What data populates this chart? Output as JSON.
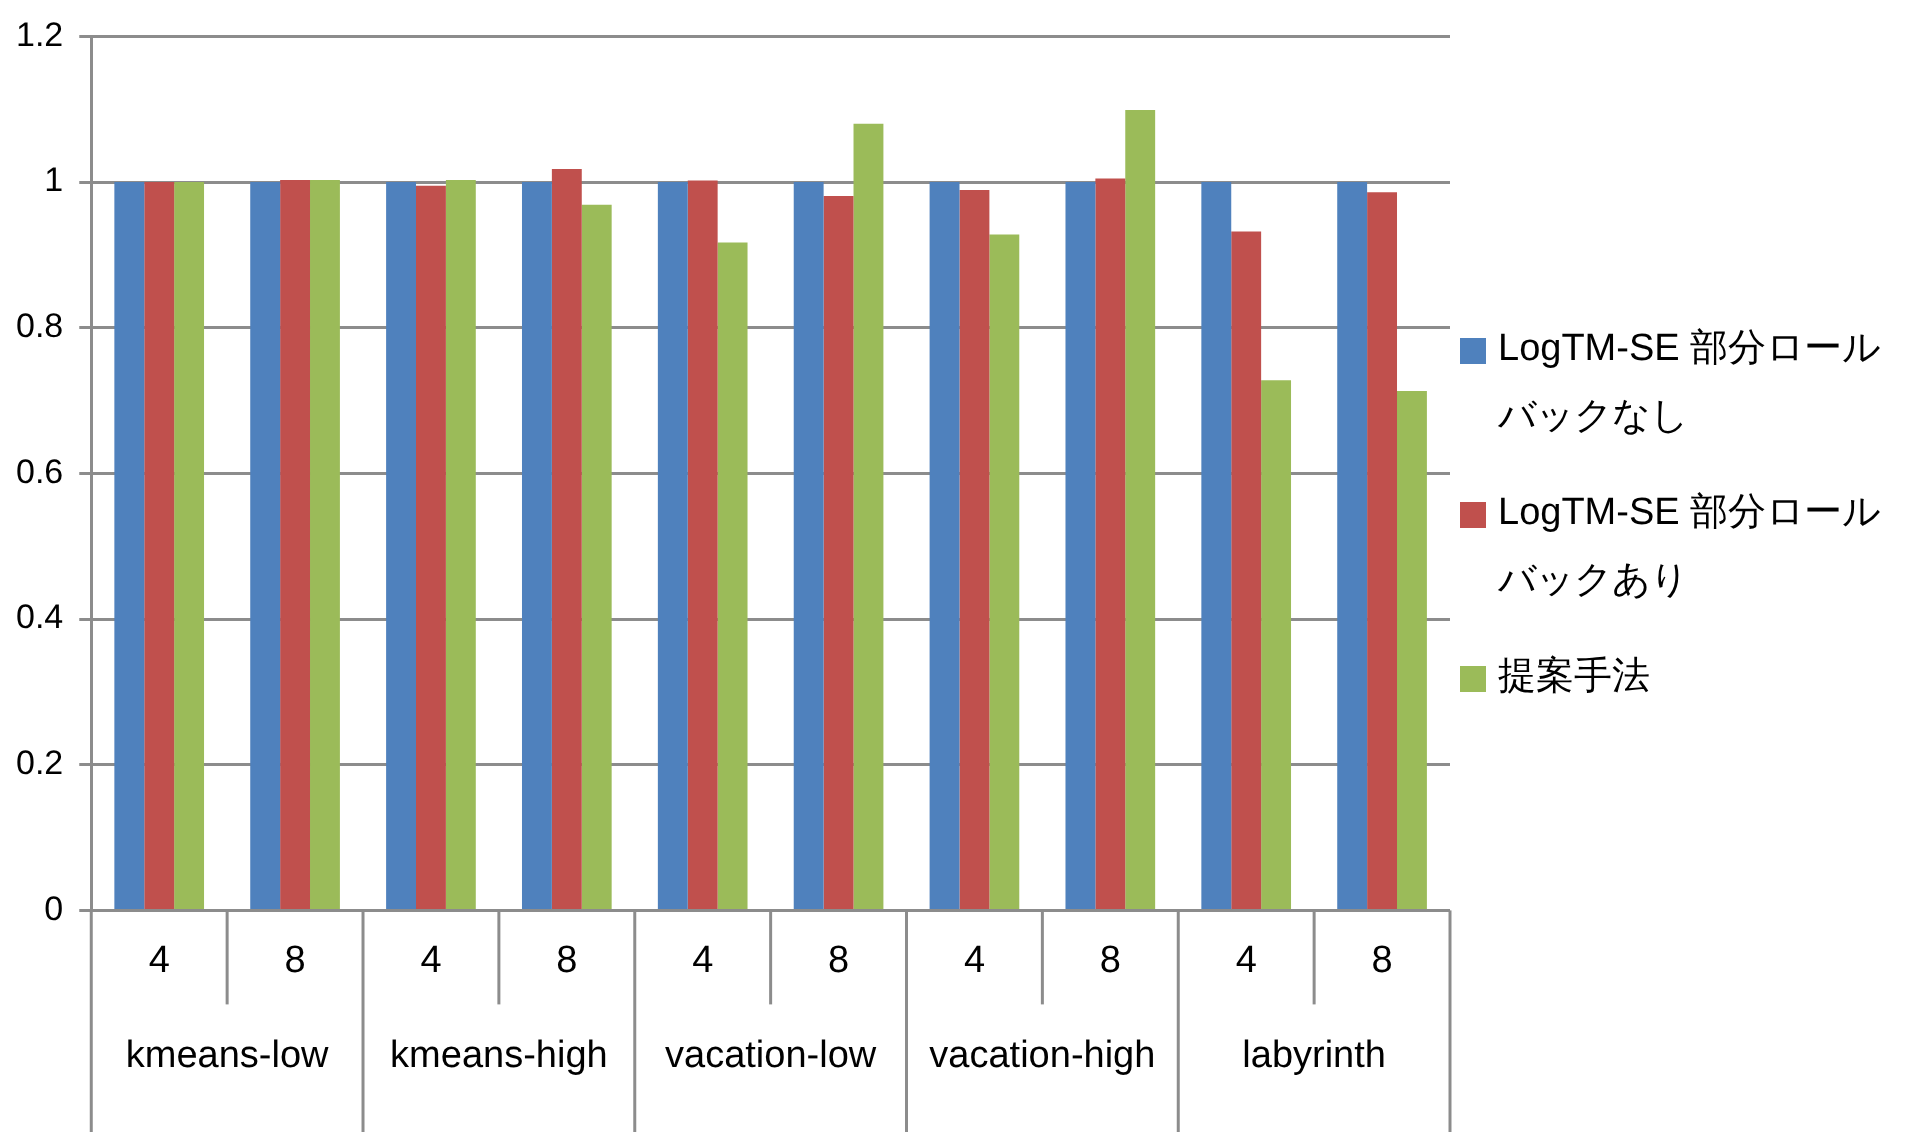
{
  "chart_data": {
    "type": "bar",
    "categories": [
      "4",
      "8",
      "4",
      "8",
      "4",
      "8",
      "4",
      "8",
      "4",
      "8"
    ],
    "series": [
      {
        "name": "LogTM-SE 部分ロールバックなし",
        "color": "#4f81bd",
        "values": [
          1,
          1,
          1,
          1,
          1,
          1,
          1,
          1,
          1,
          1
        ]
      },
      {
        "name": "LogTM-SE 部分ロールバックあり",
        "color": "#c0504d",
        "values": [
          1,
          1.003,
          0.995,
          1.018,
          1.002,
          0.981,
          0.989,
          1.005,
          0.932,
          0.986
        ]
      },
      {
        "name": "提案手法",
        "color": "#9bbb59",
        "values": [
          1,
          1.003,
          1.003,
          0.969,
          0.917,
          1.08,
          0.928,
          1.099,
          0.728,
          0.713
        ]
      }
    ],
    "annotations": [
      "kmeans-low",
      "kmeans-high",
      "vacation-low",
      "vacation-high",
      "labyrinth"
    ],
    "ylim": [
      0,
      1.2
    ],
    "yticks": [
      0,
      0.2,
      0.4,
      0.6,
      0.8,
      1,
      1.2
    ],
    "grid": "y",
    "legend": "right"
  }
}
